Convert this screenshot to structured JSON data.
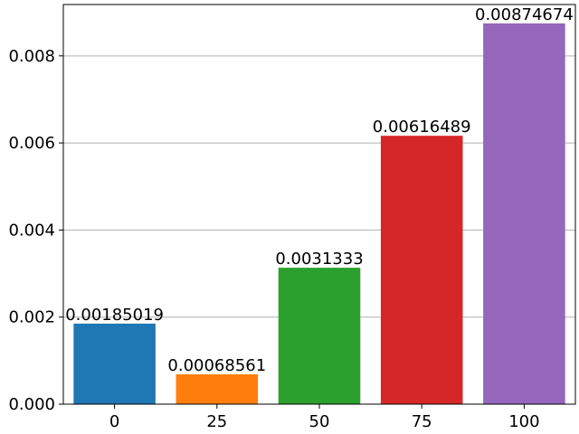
{
  "chart_data": {
    "type": "bar",
    "title": "",
    "xlabel": "",
    "ylabel": "",
    "categories": [
      "0",
      "25",
      "50",
      "75",
      "100"
    ],
    "values": [
      0.00185019,
      0.00068561,
      0.0031333,
      0.00616489,
      0.00874674
    ],
    "value_labels": [
      "0.00185019",
      "0.00068561",
      "0.0031333",
      "0.00616489",
      "0.00874674"
    ],
    "colors": [
      "#1f77b4",
      "#ff7f0e",
      "#2ca02c",
      "#d62728",
      "#9467bd"
    ],
    "ylim": [
      0,
      0.00918
    ],
    "yticks": [
      0.0,
      0.002,
      0.004,
      0.006,
      0.008
    ],
    "ytick_labels": [
      "0.000",
      "0.002",
      "0.004",
      "0.006",
      "0.008"
    ],
    "grid": "horizontal",
    "legend": "none"
  }
}
